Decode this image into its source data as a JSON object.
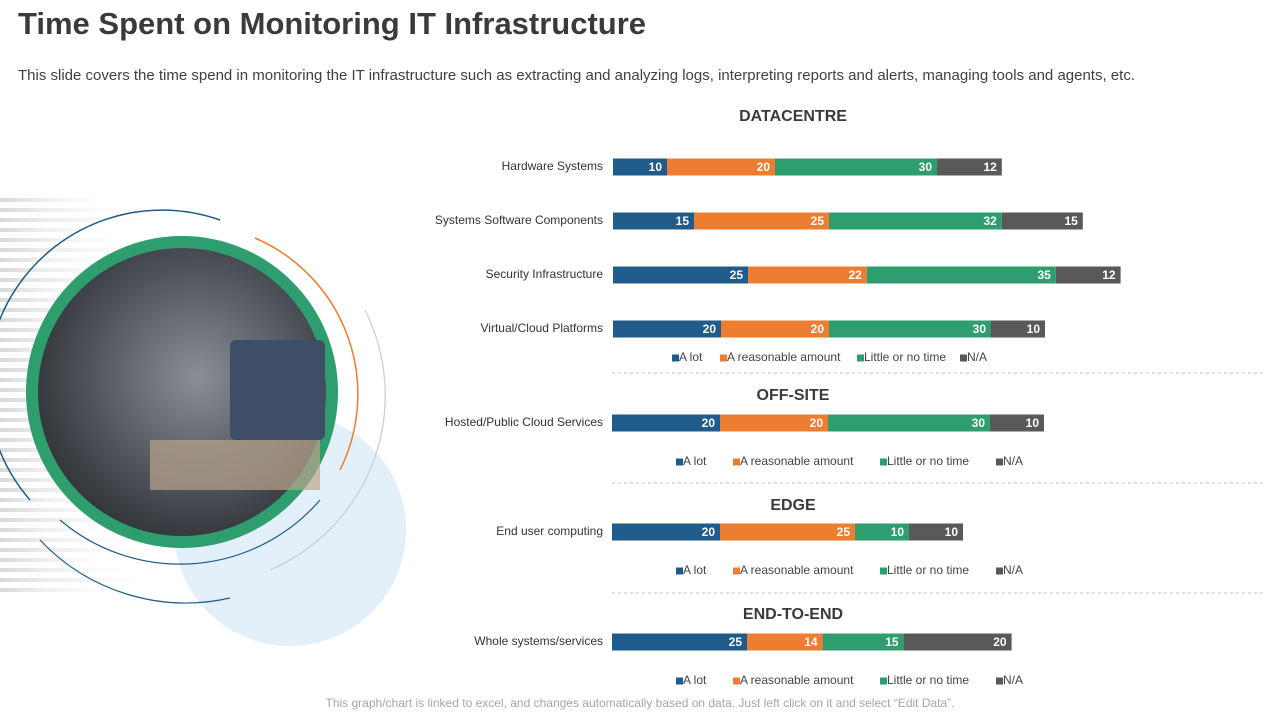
{
  "header": {
    "title": "Time Spent on Monitoring IT Infrastructure",
    "subtitle": "This slide covers the time spend in monitoring the IT infrastructure  such as extracting and analyzing logs, interpreting reports and alerts, managing tools and agents, etc."
  },
  "footer": "This graph/chart is linked to excel, and changes automatically based on data. Just left click on it and select “Edit Data”.",
  "chart_data": [
    {
      "type": "stacked-bar-horizontal",
      "title": "DATACENTRE",
      "categories": [
        "Hardware Systems",
        "Systems Software Components",
        "Security Infrastructure",
        "Virtual/Cloud Platforms"
      ],
      "series": [
        {
          "name": "A lot",
          "color": "#1f5c8b",
          "values": [
            10,
            15,
            25,
            20
          ]
        },
        {
          "name": "A reasonable amount",
          "color": "#ed7d31",
          "values": [
            20,
            25,
            22,
            20
          ]
        },
        {
          "name": "Little or no time",
          "color": "#2e9e6e",
          "values": [
            30,
            32,
            35,
            30
          ]
        },
        {
          "name": "N/A",
          "color": "#595959",
          "values": [
            12,
            15,
            12,
            10
          ]
        }
      ]
    },
    {
      "type": "stacked-bar-horizontal",
      "title": "OFF-SITE",
      "categories": [
        "Hosted/Public Cloud Services"
      ],
      "series": [
        {
          "name": "A lot",
          "color": "#1f5c8b",
          "values": [
            20
          ]
        },
        {
          "name": "A reasonable amount",
          "color": "#ed7d31",
          "values": [
            20
          ]
        },
        {
          "name": "Little or no time",
          "color": "#2e9e6e",
          "values": [
            30
          ]
        },
        {
          "name": "N/A",
          "color": "#595959",
          "values": [
            10
          ]
        }
      ]
    },
    {
      "type": "stacked-bar-horizontal",
      "title": "EDGE",
      "categories": [
        "End user computing"
      ],
      "series": [
        {
          "name": "A lot",
          "color": "#1f5c8b",
          "values": [
            20
          ]
        },
        {
          "name": "A reasonable amount",
          "color": "#ed7d31",
          "values": [
            25
          ]
        },
        {
          "name": "Little or no time",
          "color": "#2e9e6e",
          "values": [
            10
          ]
        },
        {
          "name": "N/A",
          "color": "#595959",
          "values": [
            10
          ]
        }
      ]
    },
    {
      "type": "stacked-bar-horizontal",
      "title": "END-TO-END",
      "categories": [
        "Whole systems/services"
      ],
      "series": [
        {
          "name": "A lot",
          "color": "#1f5c8b",
          "values": [
            25
          ]
        },
        {
          "name": "A reasonable amount",
          "color": "#ed7d31",
          "values": [
            14
          ]
        },
        {
          "name": "Little or no time",
          "color": "#2e9e6e",
          "values": [
            15
          ]
        },
        {
          "name": "N/A",
          "color": "#595959",
          "values": [
            20
          ]
        }
      ]
    }
  ]
}
